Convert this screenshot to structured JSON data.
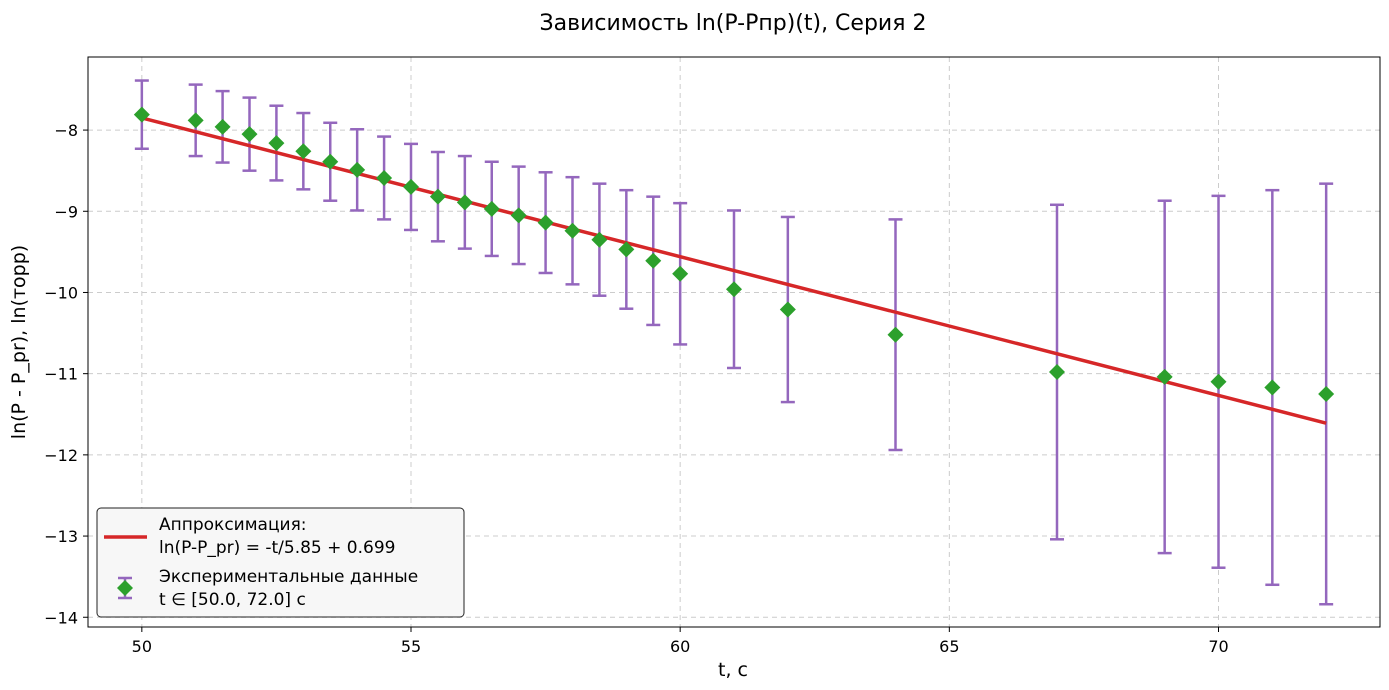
{
  "chart_data": {
    "type": "scatter",
    "title": "Зависимость ln(P-Pпр)(t), Серия 2",
    "xlabel": "t, c",
    "ylabel": "ln(P - P_pr), ln(торр)",
    "xlim": [
      49,
      73
    ],
    "ylim": [
      -14.12,
      -7.1
    ],
    "xticks": [
      50,
      55,
      60,
      65,
      70
    ],
    "yticks": [
      -8,
      -9,
      -10,
      -11,
      -12,
      -13,
      -14
    ],
    "grid": true,
    "legend_position": "lower-left",
    "colors": {
      "fit": "#d62728",
      "points": "#2ca02c",
      "errorbars": "#9467bd"
    },
    "fit": {
      "label_line1": "Аппроксимация:",
      "label_line2": "ln(P-P_pr) = -t/5.85 + 0.699",
      "x_range": [
        50,
        72
      ],
      "y_range": [
        -7.85,
        -11.61
      ]
    },
    "series": [
      {
        "label_line1": "Экспериментальные данные",
        "label_line2": "t ∈ [50.0, 72.0] c",
        "x": [
          50,
          51,
          51.5,
          52,
          52.5,
          53,
          53.5,
          54,
          54.5,
          55,
          55.5,
          56,
          56.5,
          57,
          57.5,
          58,
          58.5,
          59,
          59.5,
          60,
          61,
          62,
          64,
          67,
          69,
          70,
          71,
          72
        ],
        "y": [
          -7.81,
          -7.88,
          -7.96,
          -8.05,
          -8.16,
          -8.26,
          -8.39,
          -8.49,
          -8.59,
          -8.7,
          -8.82,
          -8.89,
          -8.97,
          -9.05,
          -9.14,
          -9.24,
          -9.35,
          -9.47,
          -9.61,
          -9.77,
          -9.96,
          -10.21,
          -10.52,
          -10.98,
          -11.04,
          -11.1,
          -11.17,
          -11.25
        ],
        "yerr": [
          0.42,
          0.44,
          0.44,
          0.45,
          0.46,
          0.47,
          0.48,
          0.5,
          0.51,
          0.53,
          0.55,
          0.57,
          0.58,
          0.6,
          0.62,
          0.66,
          0.69,
          0.73,
          0.79,
          0.87,
          0.97,
          1.14,
          1.42,
          2.06,
          2.17,
          2.29,
          2.43,
          2.59
        ]
      }
    ]
  }
}
